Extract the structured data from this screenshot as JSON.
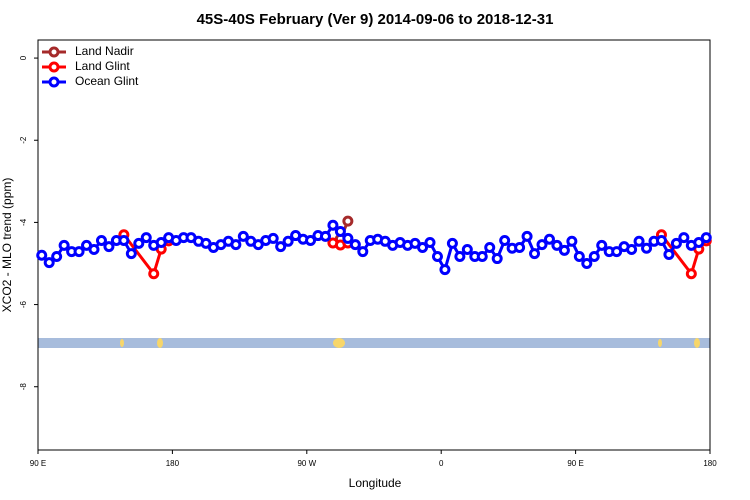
{
  "chart_data": {
    "type": "line",
    "title": "45S-40S February (Ver 9)   2014-09-06 to 2018-12-31",
    "x_label": "Longitude",
    "y_label": "XCO2 - MLO trend (ppm)",
    "xlim": [
      90,
      540
    ],
    "ylim": [
      -9.54,
      0.44
    ],
    "xticks": [
      {
        "value": 90,
        "label": "90 E"
      },
      180,
      {
        "value": 270,
        "label": "90 W"
      },
      {
        "value": 360,
        "label": "0"
      },
      {
        "value": 450,
        "label": "90 E"
      },
      {
        "value": 540,
        "label": "180"
      }
    ],
    "yticks": [
      0,
      -2,
      -4,
      -6,
      -8
    ],
    "legend": "top-left",
    "series": [
      {
        "name": "Land Nadir",
        "color": "#a52a2a",
        "x": [
          292.5,
          297.5
        ],
        "values": [
          -4.4,
          -3.97
        ]
      },
      {
        "name": "Land Glint",
        "color": "#ff0000",
        "x": [
          147.5,
          167.5,
          172.5,
          177.5,
          null,
          287.5,
          292.5,
          297.5,
          null,
          507.5,
          527.5,
          532.5,
          537.5
        ],
        "values": [
          -4.3,
          -5.25,
          -4.65,
          -4.45,
          null,
          -4.5,
          -4.55,
          -4.5,
          null,
          -4.3,
          -5.25,
          -4.65,
          -4.45
        ]
      },
      {
        "name": "Ocean Glint",
        "color": "#0000ff",
        "x": [
          92.5,
          97.5,
          102.5,
          107.5,
          112.5,
          117.5,
          122.5,
          127.5,
          132.5,
          137.5,
          142.5,
          147.5,
          152.5,
          157.5,
          162.5,
          167.5,
          172.5,
          177.5,
          182.5,
          187.5,
          192.5,
          197.5,
          202.5,
          207.5,
          212.5,
          217.5,
          222.5,
          227.5,
          232.5,
          237.5,
          242.5,
          247.5,
          252.5,
          257.5,
          262.5,
          267.5,
          272.5,
          277.5,
          282.5,
          287.5,
          292.5,
          297.5,
          302.5,
          307.5,
          312.5,
          317.5,
          322.5,
          327.5,
          332.5,
          337.5,
          342.5,
          347.5,
          352.5,
          357.5,
          362.5,
          367.5,
          372.5,
          377.5,
          382.5,
          387.5,
          392.5,
          397.5,
          402.5,
          407.5,
          412.5,
          417.5,
          422.5,
          427.5,
          432.5,
          437.5,
          442.5,
          447.5,
          452.5,
          457.5,
          462.5,
          467.5,
          472.5,
          477.5,
          482.5,
          487.5,
          492.5,
          497.5,
          502.5,
          507.5,
          512.5,
          517.5,
          522.5,
          527.5,
          532.5,
          537.5
        ],
        "values": [
          -4.8,
          -4.98,
          -4.83,
          -4.56,
          -4.71,
          -4.71,
          -4.56,
          -4.66,
          -4.44,
          -4.59,
          -4.44,
          -4.44,
          -4.76,
          -4.51,
          -4.37,
          -4.56,
          -4.49,
          -4.37,
          -4.44,
          -4.37,
          -4.37,
          -4.46,
          -4.51,
          -4.61,
          -4.54,
          -4.46,
          -4.54,
          -4.34,
          -4.46,
          -4.54,
          -4.44,
          -4.39,
          -4.59,
          -4.46,
          -4.32,
          -4.41,
          -4.44,
          -4.32,
          -4.34,
          -4.07,
          -4.22,
          -4.39,
          -4.54,
          -4.71,
          -4.44,
          -4.41,
          -4.46,
          -4.56,
          -4.49,
          -4.56,
          -4.51,
          -4.61,
          -4.49,
          -4.83,
          -5.15,
          -4.51,
          -4.83,
          -4.66,
          -4.83,
          -4.83,
          -4.61,
          -4.88,
          -4.44,
          -4.63,
          -4.61,
          -4.34,
          -4.76,
          -4.54,
          -4.41,
          -4.56,
          -4.68,
          -4.46,
          -4.83,
          -5.0,
          -4.83,
          -4.56,
          -4.71,
          -4.71,
          -4.59,
          -4.66,
          -4.46,
          -4.63,
          -4.46,
          -4.44,
          -4.78,
          -4.51,
          -4.37,
          -4.56,
          -4.49,
          -4.37
        ]
      }
    ]
  }
}
